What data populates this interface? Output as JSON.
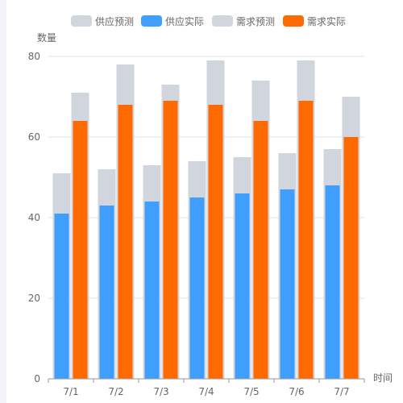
{
  "chart_data": {
    "type": "bar",
    "categories": [
      "7/1",
      "7/2",
      "7/3",
      "7/4",
      "7/5",
      "7/6",
      "7/7"
    ],
    "ylabel": "数量",
    "xlabel": "时间",
    "ylim": [
      0,
      80
    ],
    "yticks": [
      0,
      20,
      40,
      60,
      80
    ],
    "grid": true,
    "legend_position": "top-center",
    "series": [
      {
        "name": "供应预测",
        "color": "#d1d5dd",
        "values": [
          51,
          52,
          53,
          54,
          55,
          56,
          57
        ]
      },
      {
        "name": "供应实际",
        "color": "#409eff",
        "values": [
          41,
          43,
          44,
          45,
          46,
          47,
          48
        ]
      },
      {
        "name": "需求预测",
        "color": "#d1d5dd",
        "values": [
          71,
          78,
          73,
          79,
          74,
          79,
          70
        ]
      },
      {
        "name": "需求实际",
        "color": "#ff6a00",
        "values": [
          64,
          68,
          69,
          68,
          64,
          69,
          60
        ]
      }
    ]
  }
}
